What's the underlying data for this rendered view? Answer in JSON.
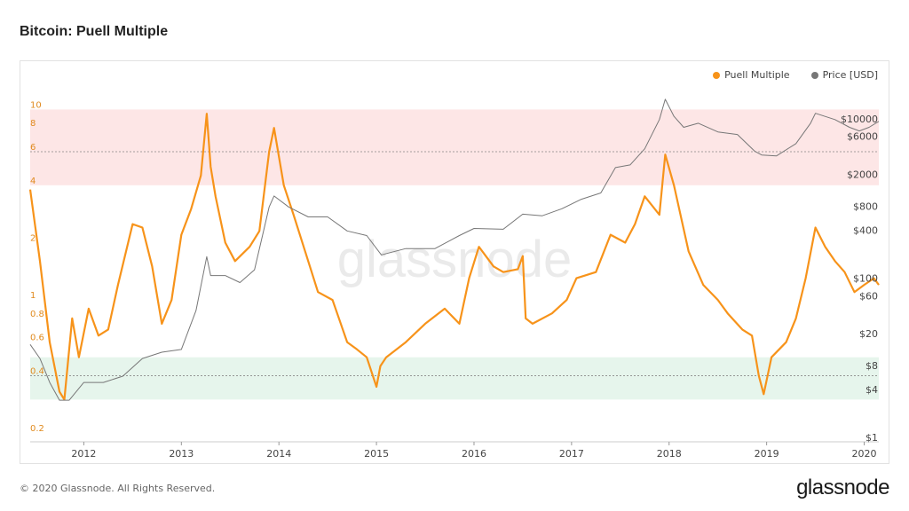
{
  "page": {
    "title": "Bitcoin: Puell Multiple",
    "footer": "© 2020 Glassnode. All Rights Reserved.",
    "logo": "glassnode",
    "watermark": "glassnode"
  },
  "legend": {
    "items": [
      {
        "label": "Puell Multiple",
        "color": "#f7931a"
      },
      {
        "label": "Price [USD]",
        "color": "#777777"
      }
    ]
  },
  "chart_data": {
    "type": "line",
    "title": "Bitcoin: Puell Multiple",
    "x_ticks": [
      "2012",
      "2013",
      "2014",
      "2015",
      "2016",
      "2017",
      "2018",
      "2019",
      "2020"
    ],
    "xlim": [
      2011.45,
      2020.15
    ],
    "left_axis": {
      "scale": "log",
      "range": [
        0.18,
        14
      ],
      "ticks": [
        0.2,
        0.4,
        0.6,
        0.8,
        1,
        2,
        4,
        6,
        8,
        10
      ]
    },
    "right_axis": {
      "scale": "log",
      "range": [
        0.9,
        30000
      ],
      "ticks": [
        1,
        4,
        8,
        20,
        60,
        100,
        400,
        800,
        2000,
        6000,
        10000
      ],
      "tick_prefix": "$"
    },
    "bands": [
      {
        "name": "red",
        "from": 4,
        "to": 10,
        "color": "#fde6e6"
      },
      {
        "name": "green",
        "from": 0.3,
        "to": 0.5,
        "color": "#e6f5ec"
      }
    ],
    "reference_lines": [
      {
        "axis": "left",
        "value": 6
      },
      {
        "axis": "left",
        "value": 0.4
      }
    ],
    "series": [
      {
        "name": "Puell Multiple",
        "axis": "left",
        "color": "#f7931a",
        "x": [
          2011.45,
          2011.55,
          2011.65,
          2011.75,
          2011.8,
          2011.88,
          2011.95,
          2012.05,
          2012.15,
          2012.25,
          2012.35,
          2012.5,
          2012.6,
          2012.7,
          2012.8,
          2012.9,
          2013.0,
          2013.1,
          2013.2,
          2013.26,
          2013.3,
          2013.35,
          2013.45,
          2013.55,
          2013.7,
          2013.8,
          2013.9,
          2013.95,
          2014.05,
          2014.15,
          2014.3,
          2014.4,
          2014.55,
          2014.7,
          2014.8,
          2014.9,
          2015.0,
          2015.04,
          2015.1,
          2015.3,
          2015.5,
          2015.7,
          2015.85,
          2015.95,
          2016.05,
          2016.2,
          2016.3,
          2016.45,
          2016.5,
          2016.53,
          2016.6,
          2016.8,
          2016.95,
          2017.05,
          2017.25,
          2017.4,
          2017.55,
          2017.65,
          2017.75,
          2017.9,
          2017.96,
          2018.05,
          2018.2,
          2018.35,
          2018.5,
          2018.6,
          2018.75,
          2018.85,
          2018.92,
          2018.97,
          2019.05,
          2019.2,
          2019.3,
          2019.4,
          2019.5,
          2019.6,
          2019.7,
          2019.8,
          2019.9,
          2020.0,
          2020.1,
          2020.15
        ],
        "y": [
          3.8,
          1.6,
          0.6,
          0.33,
          0.3,
          0.8,
          0.5,
          0.9,
          0.65,
          0.7,
          1.2,
          2.5,
          2.4,
          1.5,
          0.75,
          1.0,
          2.2,
          3.0,
          4.5,
          9.5,
          5.0,
          3.5,
          2.0,
          1.6,
          1.9,
          2.3,
          6.0,
          8.0,
          4.0,
          2.8,
          1.6,
          1.1,
          1.0,
          0.6,
          0.55,
          0.5,
          0.35,
          0.45,
          0.5,
          0.6,
          0.75,
          0.9,
          0.75,
          1.3,
          1.9,
          1.5,
          1.4,
          1.45,
          1.7,
          0.8,
          0.75,
          0.85,
          1.0,
          1.3,
          1.4,
          2.2,
          2.0,
          2.5,
          3.5,
          2.8,
          5.8,
          4.0,
          1.8,
          1.2,
          1.0,
          0.85,
          0.7,
          0.65,
          0.4,
          0.32,
          0.5,
          0.6,
          0.8,
          1.3,
          2.4,
          1.9,
          1.6,
          1.4,
          1.1,
          1.2,
          1.3,
          1.2
        ]
      },
      {
        "name": "Price [USD]",
        "axis": "right",
        "color": "#777777",
        "x": [
          2011.45,
          2011.55,
          2011.65,
          2011.75,
          2011.85,
          2012.0,
          2012.2,
          2012.4,
          2012.6,
          2012.8,
          2013.0,
          2013.15,
          2013.26,
          2013.3,
          2013.45,
          2013.6,
          2013.75,
          2013.9,
          2013.95,
          2014.1,
          2014.3,
          2014.5,
          2014.7,
          2014.9,
          2015.05,
          2015.3,
          2015.6,
          2015.85,
          2016.0,
          2016.3,
          2016.5,
          2016.7,
          2016.9,
          2017.1,
          2017.3,
          2017.45,
          2017.6,
          2017.75,
          2017.9,
          2017.96,
          2018.05,
          2018.15,
          2018.3,
          2018.5,
          2018.7,
          2018.88,
          2018.95,
          2019.1,
          2019.3,
          2019.45,
          2019.5,
          2019.7,
          2019.85,
          2019.95,
          2020.05,
          2020.15
        ],
        "y": [
          15,
          10,
          5,
          3,
          3,
          5,
          5,
          6,
          10,
          12,
          13,
          40,
          190,
          110,
          110,
          90,
          130,
          800,
          1100,
          800,
          600,
          600,
          400,
          350,
          200,
          240,
          240,
          350,
          430,
          420,
          650,
          620,
          760,
          1000,
          1200,
          2500,
          2700,
          4300,
          10000,
          18000,
          11000,
          8000,
          9000,
          7000,
          6500,
          4000,
          3600,
          3500,
          5000,
          9000,
          12000,
          10000,
          8000,
          7200,
          8000,
          9500
        ]
      }
    ]
  }
}
